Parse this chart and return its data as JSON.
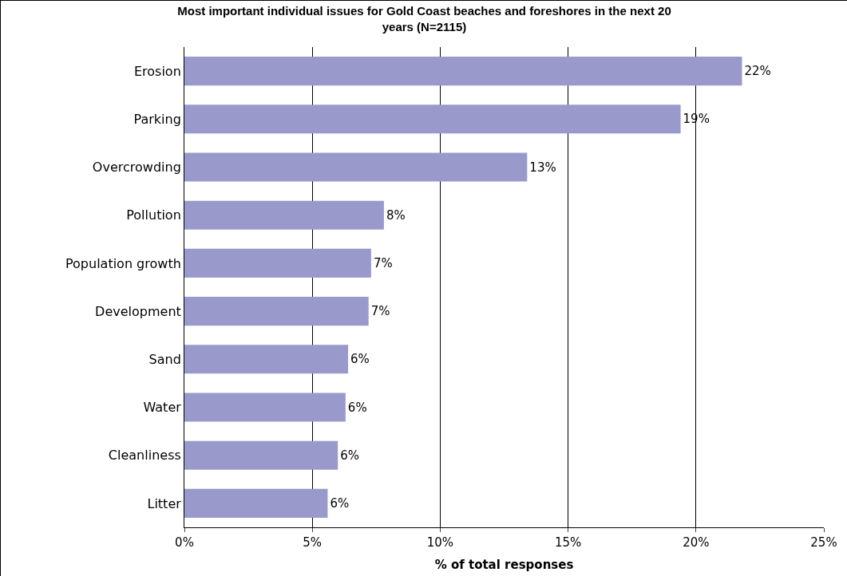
{
  "chart_data": {
    "type": "bar",
    "orientation": "horizontal",
    "title": "Most important individual issues for Gold Coast beaches and foreshores in the next 20 years (N=2115)",
    "xlabel": "% of total responses",
    "categories": [
      "Erosion",
      "Parking",
      "Overcrowding",
      "Pollution",
      "Population growth",
      "Development",
      "Sand",
      "Water",
      "Cleanliness",
      "Litter"
    ],
    "values": [
      21.8,
      19.4,
      13.4,
      7.8,
      7.3,
      7.2,
      6.4,
      6.3,
      6.0,
      5.6
    ],
    "value_labels": [
      "22%",
      "19%",
      "13%",
      "8%",
      "7%",
      "7%",
      "6%",
      "6%",
      "6%",
      "6%"
    ],
    "color": "#9999cc",
    "xlim": [
      0,
      25
    ],
    "xticks": [
      {
        "value": 0,
        "label": "0%"
      },
      {
        "value": 5,
        "label": "5%"
      },
      {
        "value": 10,
        "label": "10%"
      },
      {
        "value": 15,
        "label": "15%"
      },
      {
        "value": 20,
        "label": "20%"
      },
      {
        "value": 25,
        "label": "25%"
      }
    ],
    "grid": "x"
  }
}
